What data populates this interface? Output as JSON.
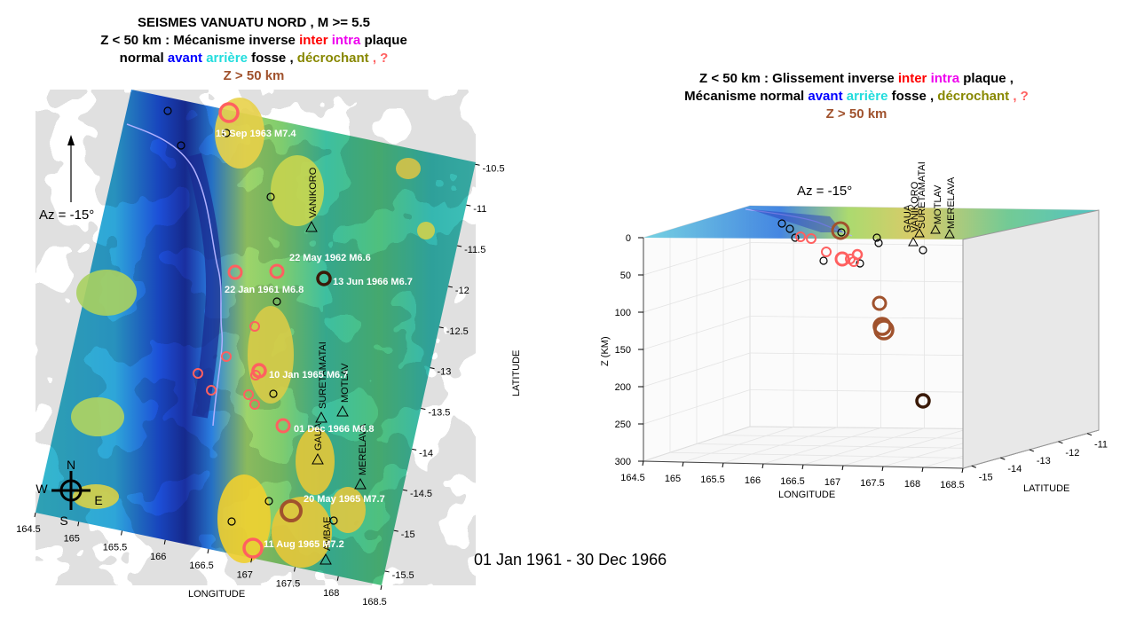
{
  "left_panel": {
    "title_lines": [
      [
        {
          "text": "SEISMES VANUATU  NORD ,  M >=  5.5",
          "color": "#000000"
        }
      ],
      [
        {
          "text": "Z < 50 km : Mécanisme inverse ",
          "color": "#000000"
        },
        {
          "text": "inter ",
          "color": "#ff0000"
        },
        {
          "text": "intra ",
          "color": "#ee00ee"
        },
        {
          "text": "plaque",
          "color": "#000000"
        }
      ],
      [
        {
          "text": "normal  ",
          "color": "#000000"
        },
        {
          "text": "avant  ",
          "color": "#0000ff"
        },
        {
          "text": "arrière  ",
          "color": "#22dddd"
        },
        {
          "text": "fosse ,  ",
          "color": "#000000"
        },
        {
          "text": "décrochant ",
          "color": "#888800"
        },
        {
          "text": ", ?",
          "color": "#ff6060"
        }
      ],
      [
        {
          "text": "Z > 50 km",
          "color": "#a0522d"
        }
      ]
    ],
    "azimuth": "Az =  -15°",
    "compass": {
      "N": "N",
      "S": "S",
      "E": "E",
      "W": "W"
    },
    "xlabel": "LONGITUDE",
    "ylabel": "LATITUDE",
    "lon_ticks": [
      "164.5",
      "165",
      "165.5",
      "166",
      "166.5",
      "167",
      "167.5",
      "168",
      "168.5"
    ],
    "lat_ticks": [
      "-10.5",
      "-11",
      "-11.5",
      "-12",
      "-12.5",
      "-13",
      "-13.5",
      "-14",
      "-14.5",
      "-15",
      "-15.5"
    ],
    "stations": [
      "VANIKORO",
      "SURETAMATAI",
      "MOTLAV",
      "GAUA",
      "MERELAVA",
      "AMBAE"
    ],
    "event_labels": [
      "15 Sep 1963 M7.4",
      "22 May 1962 M6.6",
      "22 Jan 1961 M6.8",
      "13 Jun 1966 M6.7",
      "10 Jan 1965 M6.7",
      "01 Dec 1966 M6.8",
      "20 May 1965 M7.7",
      "11 Aug 1965 M7.2"
    ]
  },
  "right_panel": {
    "title_lines": [
      [
        {
          "text": "Z < 50 km :  Glissement inverse ",
          "color": "#000000"
        },
        {
          "text": "inter ",
          "color": "#ff0000"
        },
        {
          "text": "intra ",
          "color": "#ee00ee"
        },
        {
          "text": "plaque ,",
          "color": "#000000"
        }
      ],
      [
        {
          "text": "Mécanisme normal  ",
          "color": "#000000"
        },
        {
          "text": "avant  ",
          "color": "#0000ff"
        },
        {
          "text": "arrière  ",
          "color": "#22dddd"
        },
        {
          "text": "fosse ,  ",
          "color": "#000000"
        },
        {
          "text": "décrochant ",
          "color": "#888800"
        },
        {
          "text": ", ?",
          "color": "#ff6060"
        }
      ],
      [
        {
          "text": "Z > 50 km",
          "color": "#a0522d"
        }
      ]
    ],
    "azimuth": "Az =  -15°",
    "zlabel": "Z (KM)",
    "xlabel": "LONGITUDE",
    "ylabel": "LATITUDE",
    "z_ticks": [
      "0",
      "50",
      "100",
      "150",
      "200",
      "250",
      "300"
    ],
    "lon_ticks": [
      "164.5",
      "165",
      "165.5",
      "166",
      "166.5",
      "167",
      "167.5",
      "168",
      "168.5"
    ],
    "lat_ticks": [
      "-15",
      "-14",
      "-13",
      "-12",
      "-11"
    ],
    "stations": [
      "VANIKORO",
      "SURETAMATAI",
      "MOTLAV",
      "MERELAVA",
      "GAUA"
    ]
  },
  "date_range": "01 Jan 1961 - 30 Dec 1966",
  "colors": {
    "inter": "#ff0000",
    "intra": "#ee00ee",
    "avant": "#0000ff",
    "arriere": "#22dddd",
    "decrochant": "#888800",
    "unknown": "#ff6060",
    "deep": "#a0522d",
    "deep_dark": "#3a1a08"
  }
}
